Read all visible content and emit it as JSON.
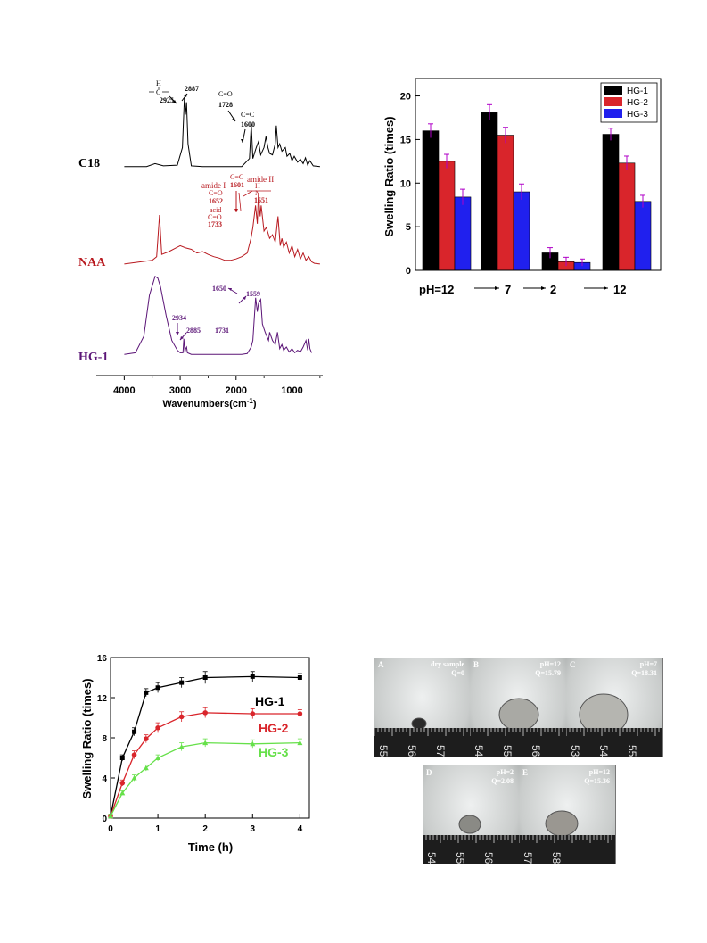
{
  "colors": {
    "black": "#000000",
    "red": "#d9252b",
    "blue": "#2020ee",
    "green": "#66e04a",
    "dark_red": "#b8191f",
    "purple": "#5b1577",
    "error_bar": "#b000c8"
  },
  "chart_data": [
    {
      "id": "ftir",
      "type": "line",
      "xlabel": "Wavenumbers(cm",
      "xlabel_superscript": "-1",
      "xlabel_close": ")",
      "xlim": [
        4500,
        450
      ],
      "x_ticks": [
        "4000",
        "3000",
        "2000",
        "1000"
      ],
      "x_tick_values": [
        4000,
        3000,
        2000,
        1000
      ],
      "series": [
        {
          "name": "C18",
          "x": [
            4000,
            3600,
            3450,
            3300,
            3050,
            2960,
            2925,
            2905,
            2887,
            2860,
            2800,
            2600,
            2200,
            1900,
            1760,
            1728,
            1700,
            1640,
            1600,
            1560,
            1500,
            1465,
            1430,
            1400,
            1350,
            1300,
            1280,
            1250,
            1220,
            1180,
            1120,
            1090,
            1040,
            1000,
            960,
            900,
            850,
            800,
            760,
            720,
            680,
            620,
            500
          ],
          "y": [
            0.04,
            0.04,
            0.08,
            0.05,
            0.06,
            0.3,
            0.98,
            0.75,
            0.92,
            0.35,
            0.05,
            0.04,
            0.04,
            0.04,
            0.15,
            0.62,
            0.15,
            0.3,
            0.38,
            0.2,
            0.3,
            0.45,
            0.3,
            0.22,
            0.2,
            0.35,
            0.6,
            0.3,
            0.35,
            0.25,
            0.3,
            0.18,
            0.22,
            0.12,
            0.18,
            0.1,
            0.14,
            0.08,
            0.16,
            0.06,
            0.12,
            0.05,
            0.04
          ]
        },
        {
          "name": "NAA",
          "x": [
            4000,
            3700,
            3500,
            3420,
            3370,
            3330,
            3200,
            3100,
            3000,
            2900,
            2800,
            2700,
            2600,
            2500,
            2400,
            2300,
            2200,
            2100,
            2000,
            1900,
            1800,
            1733,
            1700,
            1652,
            1620,
            1601,
            1570,
            1551,
            1500,
            1460,
            1400,
            1350,
            1300,
            1250,
            1210,
            1180,
            1150,
            1100,
            1050,
            1000,
            950,
            900,
            850,
            800,
            750,
            700,
            650,
            600,
            500
          ],
          "y": [
            0.05,
            0.08,
            0.1,
            0.15,
            0.72,
            0.18,
            0.22,
            0.26,
            0.3,
            0.27,
            0.25,
            0.2,
            0.22,
            0.18,
            0.15,
            0.13,
            0.1,
            0.1,
            0.12,
            0.15,
            0.2,
            0.4,
            0.55,
            0.85,
            0.6,
            1.0,
            0.7,
            0.85,
            0.5,
            0.55,
            0.4,
            0.45,
            0.35,
            0.7,
            0.3,
            0.4,
            0.28,
            0.35,
            0.2,
            0.3,
            0.15,
            0.25,
            0.12,
            0.2,
            0.1,
            0.15,
            0.08,
            0.06,
            0.05
          ]
        },
        {
          "name": "HG-1",
          "x": [
            4000,
            3800,
            3650,
            3550,
            3450,
            3400,
            3350,
            3250,
            3150,
            3050,
            3000,
            2950,
            2934,
            2915,
            2900,
            2885,
            2870,
            2800,
            2600,
            2200,
            1900,
            1800,
            1731,
            1700,
            1650,
            1620,
            1600,
            1559,
            1530,
            1480,
            1450,
            1420,
            1400,
            1350,
            1300,
            1260,
            1220,
            1180,
            1150,
            1100,
            1050,
            1000,
            950,
            900,
            850,
            800,
            750,
            720,
            700,
            680,
            650
          ],
          "y": [
            0.03,
            0.05,
            0.25,
            0.75,
            0.98,
            0.96,
            0.85,
            0.5,
            0.2,
            0.08,
            0.05,
            0.05,
            0.22,
            0.05,
            0.1,
            0.12,
            0.05,
            0.03,
            0.03,
            0.03,
            0.03,
            0.04,
            0.12,
            0.2,
            0.72,
            0.55,
            0.65,
            0.7,
            0.4,
            0.3,
            0.25,
            0.2,
            0.3,
            0.2,
            0.15,
            0.3,
            0.1,
            0.15,
            0.08,
            0.12,
            0.06,
            0.1,
            0.05,
            0.08,
            0.06,
            0.12,
            0.2,
            0.08,
            0.22,
            0.1,
            0.05
          ]
        }
      ]
    },
    {
      "id": "swelling-ph",
      "type": "bar",
      "ylabel": "Swelling Ratio (times)",
      "ylim": [
        0,
        22
      ],
      "y_ticks": [
        0,
        5,
        10,
        15,
        20
      ],
      "categories": [
        "pH=12",
        "7",
        "2",
        "12"
      ],
      "series": [
        {
          "name": "HG-1",
          "values": [
            16.0,
            18.1,
            2.0,
            15.6
          ],
          "errors": [
            0.8,
            0.9,
            0.6,
            0.7
          ]
        },
        {
          "name": "HG-2",
          "values": [
            12.5,
            15.5,
            1.0,
            12.3
          ],
          "errors": [
            0.8,
            0.9,
            0.5,
            0.8
          ]
        },
        {
          "name": "HG-3",
          "values": [
            8.4,
            9.0,
            0.9,
            7.9
          ],
          "errors": [
            0.9,
            0.9,
            0.4,
            0.7
          ]
        }
      ],
      "legend_position": "top-right"
    },
    {
      "id": "swelling-time",
      "type": "line",
      "xlabel": "Time (h)",
      "ylabel": "Swelling Ratio (times)",
      "xlim": [
        0,
        4.2
      ],
      "ylim": [
        0,
        16
      ],
      "x_ticks": [
        0,
        1,
        2,
        3,
        4
      ],
      "y_ticks": [
        0,
        4,
        8,
        12,
        16
      ],
      "x": [
        0,
        0.25,
        0.5,
        0.75,
        1,
        1.5,
        2,
        3,
        4
      ],
      "series": [
        {
          "name": "HG-1",
          "values": [
            0.2,
            6.0,
            8.6,
            12.5,
            13.0,
            13.5,
            14.0,
            14.1,
            14.0
          ],
          "errors": [
            0.2,
            0.3,
            0.4,
            0.4,
            0.5,
            0.5,
            0.6,
            0.5,
            0.4
          ]
        },
        {
          "name": "HG-2",
          "values": [
            0.2,
            3.5,
            6.3,
            7.9,
            9.0,
            10.1,
            10.5,
            10.4,
            10.4
          ],
          "errors": [
            0.2,
            0.3,
            0.4,
            0.4,
            0.5,
            0.5,
            0.5,
            0.5,
            0.4
          ]
        },
        {
          "name": "HG-3",
          "values": [
            0.2,
            2.5,
            4.0,
            5.0,
            6.0,
            7.1,
            7.5,
            7.4,
            7.5
          ],
          "errors": [
            0.2,
            0.2,
            0.3,
            0.3,
            0.3,
            0.4,
            0.4,
            0.4,
            0.4
          ]
        }
      ]
    }
  ],
  "ftir_annotations": {
    "c18_ch": "H",
    "c18_ch2": "C",
    "c18_2925": "2925",
    "c18_2887": "2887",
    "c18_co": "C=O",
    "c18_1728": "1728",
    "c18_cc": "C=C",
    "c18_1600": "1600",
    "naa_amide1": "amide I",
    "naa_co": "C=O",
    "naa_1652": "1652",
    "naa_cc": "C=C",
    "naa_1601": "1601",
    "naa_amide2": "amide II",
    "naa_h": "H",
    "naa_n": "N",
    "naa_1551": "1551",
    "naa_acid": "acid",
    "naa_co2": "C=O",
    "naa_1733": "1733",
    "hg_1650": "1650",
    "hg_1559": "1559",
    "hg_2934": "2934",
    "hg_2885": "2885",
    "hg_1731": "1731"
  },
  "photos": {
    "panels": [
      {
        "letter": "A",
        "line1": "dry sample",
        "line2": "Q=0",
        "ruler": [
          "55",
          "56",
          "57"
        ]
      },
      {
        "letter": "B",
        "line1": "pH=12",
        "line2": "Q=15.79",
        "ruler": [
          "54",
          "55",
          "56"
        ]
      },
      {
        "letter": "C",
        "line1": "pH=7",
        "line2": "Q=18.31",
        "ruler": [
          "53",
          "54",
          "55"
        ]
      },
      {
        "letter": "D",
        "line1": "pH=2",
        "line2": "Q=2.08",
        "ruler": [
          "54",
          "55",
          "56"
        ]
      },
      {
        "letter": "E",
        "line1": "pH=12",
        "line2": "Q=15.36",
        "ruler": [
          "57",
          "58"
        ]
      }
    ]
  }
}
